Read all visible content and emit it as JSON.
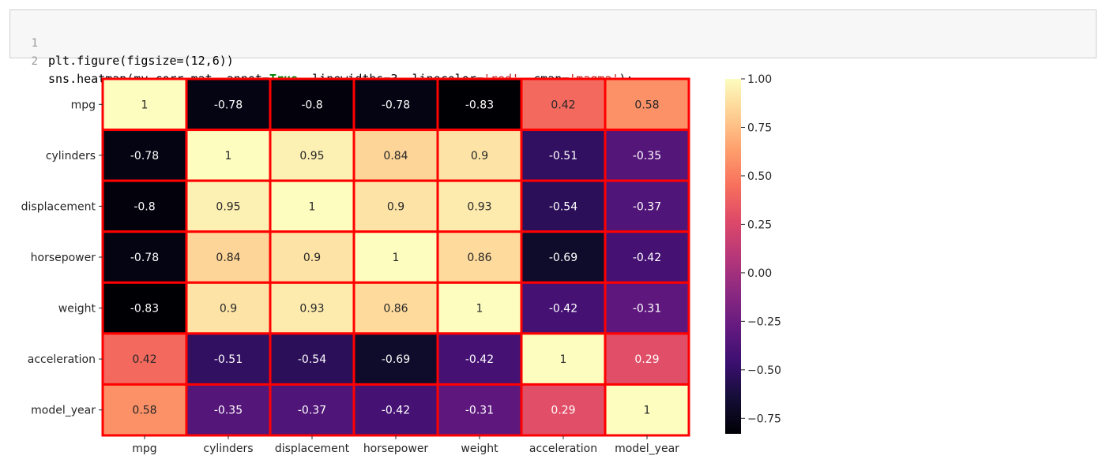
{
  "code_cell": {
    "lines": [
      {
        "number": "1",
        "segments": [
          {
            "text": "plt.figure(figsize=(12,6))",
            "style": "plain"
          }
        ]
      },
      {
        "number": "2",
        "segments": [
          {
            "text": "sns.heatmap(my_corr_mat, annot=",
            "style": "plain"
          },
          {
            "text": "True",
            "style": "kw"
          },
          {
            "text": ", linewidths=3, linecolor=",
            "style": "plain"
          },
          {
            "text": "'red'",
            "style": "str"
          },
          {
            "text": ", cmap=",
            "style": "plain"
          },
          {
            "text": "'magma'",
            "style": "str"
          },
          {
            "text": ");",
            "style": "plain"
          }
        ]
      }
    ]
  },
  "chart_data": {
    "type": "heatmap",
    "title": "",
    "xlabel": "",
    "ylabel": "",
    "rows": [
      "mpg",
      "cylinders",
      "displacement",
      "horsepower",
      "weight",
      "acceleration",
      "model_year"
    ],
    "columns": [
      "mpg",
      "cylinders",
      "displacement",
      "horsepower",
      "weight",
      "acceleration",
      "model_year"
    ],
    "values": [
      [
        1,
        -0.78,
        -0.8,
        -0.78,
        -0.83,
        0.42,
        0.58
      ],
      [
        -0.78,
        1,
        0.95,
        0.84,
        0.9,
        -0.51,
        -0.35
      ],
      [
        -0.8,
        0.95,
        1,
        0.9,
        0.93,
        -0.54,
        -0.37
      ],
      [
        -0.78,
        0.84,
        0.9,
        1,
        0.86,
        -0.69,
        -0.42
      ],
      [
        -0.83,
        0.9,
        0.93,
        0.86,
        1,
        -0.42,
        -0.31
      ],
      [
        0.42,
        -0.51,
        -0.54,
        -0.69,
        -0.42,
        1,
        0.29
      ],
      [
        0.58,
        -0.35,
        -0.37,
        -0.42,
        -0.31,
        0.29,
        1
      ]
    ],
    "annotations": [
      [
        "1",
        "-0.78",
        "-0.8",
        "-0.78",
        "-0.83",
        "0.42",
        "0.58"
      ],
      [
        "-0.78",
        "1",
        "0.95",
        "0.84",
        "0.9",
        "-0.51",
        "-0.35"
      ],
      [
        "-0.8",
        "0.95",
        "1",
        "0.9",
        "0.93",
        "-0.54",
        "-0.37"
      ],
      [
        "-0.78",
        "0.84",
        "0.9",
        "1",
        "0.86",
        "-0.69",
        "-0.42"
      ],
      [
        "-0.83",
        "0.9",
        "0.93",
        "0.86",
        "1",
        "-0.42",
        "-0.31"
      ],
      [
        "0.42",
        "-0.51",
        "-0.54",
        "-0.69",
        "-0.42",
        "1",
        "0.29"
      ],
      [
        "0.58",
        "-0.35",
        "-0.37",
        "-0.42",
        "-0.31",
        "0.29",
        "1"
      ]
    ],
    "colormap": "magma",
    "line_color": "#ff0000",
    "vmin": -0.83,
    "vmax": 1.0,
    "colorbar": {
      "ticks": [
        1.0,
        0.75,
        0.5,
        0.25,
        0.0,
        -0.25,
        -0.5,
        -0.75
      ],
      "tick_labels": [
        "1.00",
        "0.75",
        "0.50",
        "0.25",
        "0.00",
        "−0.25",
        "−0.50",
        "−0.75"
      ],
      "placement": "right"
    }
  }
}
